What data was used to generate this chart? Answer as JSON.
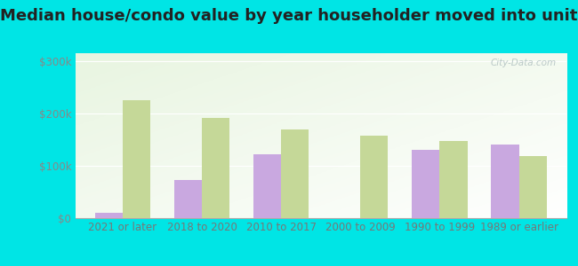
{
  "title": "Median house/condo value by year householder moved into unit",
  "categories": [
    "2021 or later",
    "2018 to 2020",
    "2010 to 2017",
    "2000 to 2009",
    "1990 to 1999",
    "1989 or earlier"
  ],
  "dover_values": [
    10000,
    72000,
    122000,
    0,
    130000,
    140000
  ],
  "arkansas_values": [
    225000,
    192000,
    170000,
    158000,
    148000,
    118000
  ],
  "dover_color": "#c9a8e0",
  "arkansas_color": "#c5d898",
  "background_color": "#00e5e5",
  "plot_bg_color": "#e8f5e0",
  "ylabel_values": [
    0,
    100000,
    200000,
    300000
  ],
  "ylabel_labels": [
    "$0",
    "$100k",
    "$200k",
    "$300k"
  ],
  "ylim": [
    0,
    315000
  ],
  "title_fontsize": 13,
  "tick_fontsize": 8.5,
  "legend_fontsize": 9.5,
  "bar_width": 0.35,
  "watermark": "City-Data.com"
}
